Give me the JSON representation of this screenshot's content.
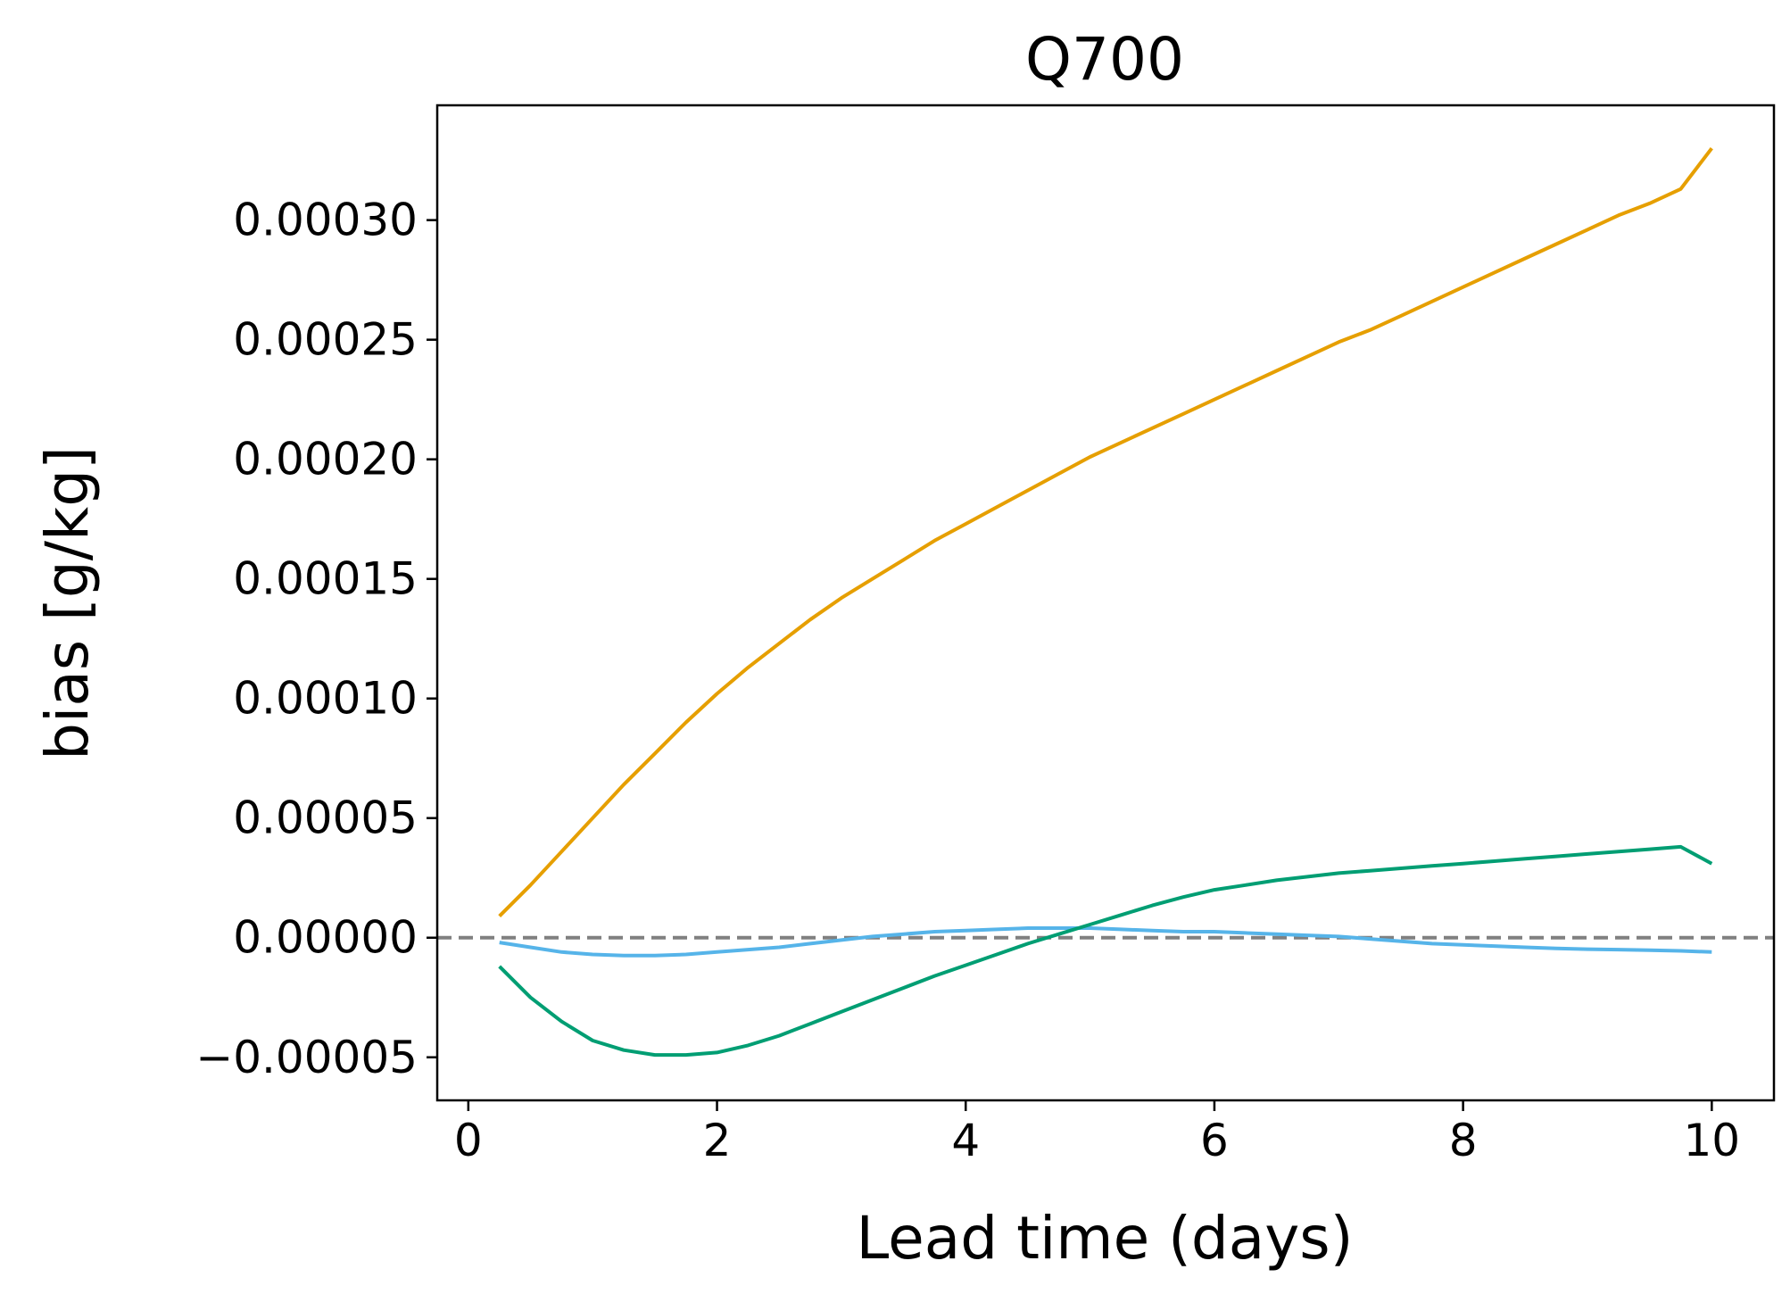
{
  "chart_data": {
    "type": "line",
    "title": "Q700",
    "xlabel": "Lead time (days)",
    "ylabel": "bias [g/kg]",
    "xlim": [
      -0.25,
      10.5
    ],
    "ylim": [
      -6.8e-05,
      0.000348
    ],
    "x_ticks": [
      0,
      2,
      4,
      6,
      8,
      10
    ],
    "x_tick_labels": [
      "0",
      "2",
      "4",
      "6",
      "8",
      "10"
    ],
    "y_ticks": [
      -5e-05,
      0.0,
      5e-05,
      0.0001,
      0.00015,
      0.0002,
      0.00025,
      0.0003
    ],
    "y_tick_labels": [
      "−0.00005",
      "0.00000",
      "0.00005",
      "0.00010",
      "0.00015",
      "0.00020",
      "0.00025",
      "0.00030"
    ],
    "grid": false,
    "legend": "none",
    "reference_line": {
      "y": 0,
      "style": "dashed",
      "color": "#808080"
    },
    "x": [
      0.25,
      0.5,
      0.75,
      1.0,
      1.25,
      1.5,
      1.75,
      2.0,
      2.25,
      2.5,
      2.75,
      3.0,
      3.25,
      3.5,
      3.75,
      4.0,
      4.25,
      4.5,
      4.75,
      5.0,
      5.25,
      5.5,
      5.75,
      6.0,
      6.25,
      6.5,
      6.75,
      7.0,
      7.25,
      7.5,
      7.75,
      8.0,
      8.25,
      8.5,
      8.75,
      9.0,
      9.25,
      9.5,
      9.75,
      10.0
    ],
    "series": [
      {
        "color": "#E69F00",
        "values": [
          9e-06,
          2.2e-05,
          3.6e-05,
          5e-05,
          6.4e-05,
          7.7e-05,
          9e-05,
          0.000102,
          0.000113,
          0.000123,
          0.000133,
          0.000142,
          0.00015,
          0.000158,
          0.000166,
          0.000173,
          0.00018,
          0.000187,
          0.000194,
          0.000201,
          0.000207,
          0.000213,
          0.000219,
          0.000225,
          0.000231,
          0.000237,
          0.000243,
          0.000249,
          0.000254,
          0.00026,
          0.000266,
          0.000272,
          0.000278,
          0.000284,
          0.00029,
          0.000296,
          0.000302,
          0.000307,
          0.000313,
          0.00033
        ]
      },
      {
        "color": "#56B4E9",
        "values": [
          -2e-06,
          -4e-06,
          -6e-06,
          -7e-06,
          -7.5e-06,
          -7.5e-06,
          -7e-06,
          -6e-06,
          -5e-06,
          -4e-06,
          -2.5e-06,
          -1e-06,
          5e-07,
          1.5e-06,
          2.5e-06,
          3e-06,
          3.5e-06,
          4e-06,
          4e-06,
          4e-06,
          3.5e-06,
          3e-06,
          2.5e-06,
          2.5e-06,
          2e-06,
          1.5e-06,
          1e-06,
          5e-07,
          -5e-07,
          -1.5e-06,
          -2.5e-06,
          -3e-06,
          -3.5e-06,
          -4e-06,
          -4.5e-06,
          -4.8e-06,
          -5e-06,
          -5.2e-06,
          -5.5e-06,
          -6e-06
        ]
      },
      {
        "color": "#009E73",
        "values": [
          -1.2e-05,
          -2.5e-05,
          -3.5e-05,
          -4.3e-05,
          -4.7e-05,
          -4.9e-05,
          -4.9e-05,
          -4.8e-05,
          -4.5e-05,
          -4.1e-05,
          -3.6e-05,
          -3.1e-05,
          -2.6e-05,
          -2.1e-05,
          -1.6e-05,
          -1.15e-05,
          -7e-06,
          -2.5e-06,
          1.5e-06,
          5.5e-06,
          9.5e-06,
          1.35e-05,
          1.7e-05,
          2e-05,
          2.2e-05,
          2.4e-05,
          2.55e-05,
          2.7e-05,
          2.8e-05,
          2.9e-05,
          3e-05,
          3.1e-05,
          3.2e-05,
          3.3e-05,
          3.4e-05,
          3.5e-05,
          3.6e-05,
          3.7e-05,
          3.8e-05,
          3.1e-05
        ]
      }
    ]
  }
}
